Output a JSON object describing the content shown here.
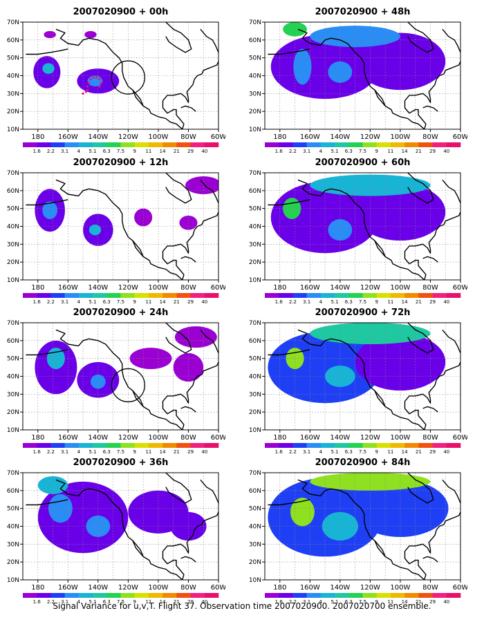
{
  "figure": {
    "caption": "Signal Variance for u,v,T. Flight 37. Observation time 2007020900. 2007020700 ensemble."
  },
  "axes": {
    "lat_ticks": [
      "70N",
      "60N",
      "50N",
      "40N",
      "30N",
      "20N",
      "10N"
    ],
    "lon_ticks": [
      "180",
      "160W",
      "140W",
      "120W",
      "100W",
      "80W",
      "60W"
    ]
  },
  "colorbar": {
    "labels": [
      "1.6",
      "2.2",
      "3.1",
      "4",
      "5.1",
      "6.3",
      "7.5",
      "9",
      "11",
      "14",
      "21",
      "29",
      "40"
    ],
    "colors": [
      "#9b00d3",
      "#6a00e8",
      "#1f3ff5",
      "#2a8cf5",
      "#18b4d6",
      "#1ec8a0",
      "#22d250",
      "#8ee020",
      "#d8e000",
      "#f0b800",
      "#f08a00",
      "#f05010",
      "#f02080",
      "#e8106a"
    ]
  },
  "panels": [
    {
      "title": "2007020900 + 00h",
      "col": 0,
      "row": 0,
      "circle": {
        "lon": -120,
        "lat": 39
      },
      "track": true,
      "blobs": [
        {
          "lon": -174,
          "lat": 42,
          "rx": 9,
          "ry": 9,
          "level": 1
        },
        {
          "lon": -173,
          "lat": 44,
          "rx": 4,
          "ry": 3,
          "level": 4
        },
        {
          "lon": -140,
          "lat": 37,
          "rx": 14,
          "ry": 7,
          "level": 1
        },
        {
          "lon": -142,
          "lat": 37,
          "rx": 5,
          "ry": 3,
          "level": 3
        },
        {
          "lon": -145,
          "lat": 63,
          "rx": 4,
          "ry": 2,
          "level": 0
        },
        {
          "lon": -172,
          "lat": 63,
          "rx": 4,
          "ry": 2,
          "level": 0
        }
      ]
    },
    {
      "title": "2007020900 + 12h",
      "col": 0,
      "row": 1,
      "blobs": [
        {
          "lon": -172,
          "lat": 49,
          "rx": 10,
          "ry": 12,
          "level": 1
        },
        {
          "lon": -172,
          "lat": 49,
          "rx": 5,
          "ry": 5,
          "level": 3
        },
        {
          "lon": -140,
          "lat": 38,
          "rx": 10,
          "ry": 9,
          "level": 1
        },
        {
          "lon": -142,
          "lat": 38,
          "rx": 4,
          "ry": 3,
          "level": 4
        },
        {
          "lon": -110,
          "lat": 45,
          "rx": 6,
          "ry": 5,
          "level": 0
        },
        {
          "lon": -80,
          "lat": 42,
          "rx": 6,
          "ry": 4,
          "level": 0
        },
        {
          "lon": -70,
          "lat": 63,
          "rx": 12,
          "ry": 5,
          "level": 0
        }
      ]
    },
    {
      "title": "2007020900 + 24h",
      "col": 0,
      "row": 2,
      "circle": {
        "lon": -120,
        "lat": 35
      },
      "blobs": [
        {
          "lon": -168,
          "lat": 45,
          "rx": 14,
          "ry": 15,
          "level": 1
        },
        {
          "lon": -168,
          "lat": 50,
          "rx": 6,
          "ry": 6,
          "level": 4
        },
        {
          "lon": -140,
          "lat": 38,
          "rx": 14,
          "ry": 10,
          "level": 1
        },
        {
          "lon": -140,
          "lat": 37,
          "rx": 5,
          "ry": 4,
          "level": 3
        },
        {
          "lon": -105,
          "lat": 50,
          "rx": 14,
          "ry": 6,
          "level": 0
        },
        {
          "lon": -80,
          "lat": 45,
          "rx": 10,
          "ry": 8,
          "level": 0
        },
        {
          "lon": -75,
          "lat": 62,
          "rx": 14,
          "ry": 6,
          "level": 0
        }
      ]
    },
    {
      "title": "2007020900 + 36h",
      "col": 0,
      "row": 3,
      "blobs": [
        {
          "lon": -150,
          "lat": 45,
          "rx": 30,
          "ry": 20,
          "level": 1
        },
        {
          "lon": -165,
          "lat": 50,
          "rx": 8,
          "ry": 8,
          "level": 3
        },
        {
          "lon": -140,
          "lat": 40,
          "rx": 8,
          "ry": 6,
          "level": 3
        },
        {
          "lon": -100,
          "lat": 48,
          "rx": 20,
          "ry": 12,
          "level": 1
        },
        {
          "lon": -80,
          "lat": 40,
          "rx": 12,
          "ry": 8,
          "level": 1
        },
        {
          "lon": -170,
          "lat": 63,
          "rx": 10,
          "ry": 5,
          "level": 4
        }
      ]
    },
    {
      "title": "2007020900 + 48h",
      "col": 1,
      "row": 0,
      "blobs": [
        {
          "lon": -150,
          "lat": 45,
          "rx": 36,
          "ry": 18,
          "level": 1
        },
        {
          "lon": -100,
          "lat": 48,
          "rx": 30,
          "ry": 16,
          "level": 1
        },
        {
          "lon": -165,
          "lat": 45,
          "rx": 6,
          "ry": 10,
          "level": 3
        },
        {
          "lon": -140,
          "lat": 42,
          "rx": 8,
          "ry": 6,
          "level": 3
        },
        {
          "lon": -130,
          "lat": 62,
          "rx": 30,
          "ry": 6,
          "level": 3
        },
        {
          "lon": -170,
          "lat": 66,
          "rx": 8,
          "ry": 4,
          "level": 6
        }
      ]
    },
    {
      "title": "2007020900 + 60h",
      "col": 1,
      "row": 1,
      "blobs": [
        {
          "lon": -150,
          "lat": 45,
          "rx": 36,
          "ry": 20,
          "level": 1
        },
        {
          "lon": -100,
          "lat": 48,
          "rx": 30,
          "ry": 16,
          "level": 1
        },
        {
          "lon": -172,
          "lat": 50,
          "rx": 6,
          "ry": 6,
          "level": 6
        },
        {
          "lon": -140,
          "lat": 38,
          "rx": 8,
          "ry": 6,
          "level": 3
        },
        {
          "lon": -120,
          "lat": 63,
          "rx": 40,
          "ry": 6,
          "level": 4
        }
      ]
    },
    {
      "title": "2007020900 + 72h",
      "col": 1,
      "row": 2,
      "blobs": [
        {
          "lon": -150,
          "lat": 45,
          "rx": 38,
          "ry": 20,
          "level": 2
        },
        {
          "lon": -100,
          "lat": 48,
          "rx": 30,
          "ry": 16,
          "level": 1
        },
        {
          "lon": -170,
          "lat": 50,
          "rx": 6,
          "ry": 6,
          "level": 7
        },
        {
          "lon": -140,
          "lat": 40,
          "rx": 10,
          "ry": 6,
          "level": 4
        },
        {
          "lon": -120,
          "lat": 64,
          "rx": 40,
          "ry": 6,
          "level": 5
        }
      ]
    },
    {
      "title": "2007020900 + 84h",
      "col": 1,
      "row": 3,
      "blobs": [
        {
          "lon": -150,
          "lat": 45,
          "rx": 38,
          "ry": 22,
          "level": 2
        },
        {
          "lon": -100,
          "lat": 50,
          "rx": 32,
          "ry": 16,
          "level": 2
        },
        {
          "lon": -165,
          "lat": 48,
          "rx": 8,
          "ry": 8,
          "level": 7
        },
        {
          "lon": -140,
          "lat": 40,
          "rx": 12,
          "ry": 8,
          "level": 4
        },
        {
          "lon": -120,
          "lat": 65,
          "rx": 40,
          "ry": 5,
          "level": 7
        }
      ]
    }
  ]
}
